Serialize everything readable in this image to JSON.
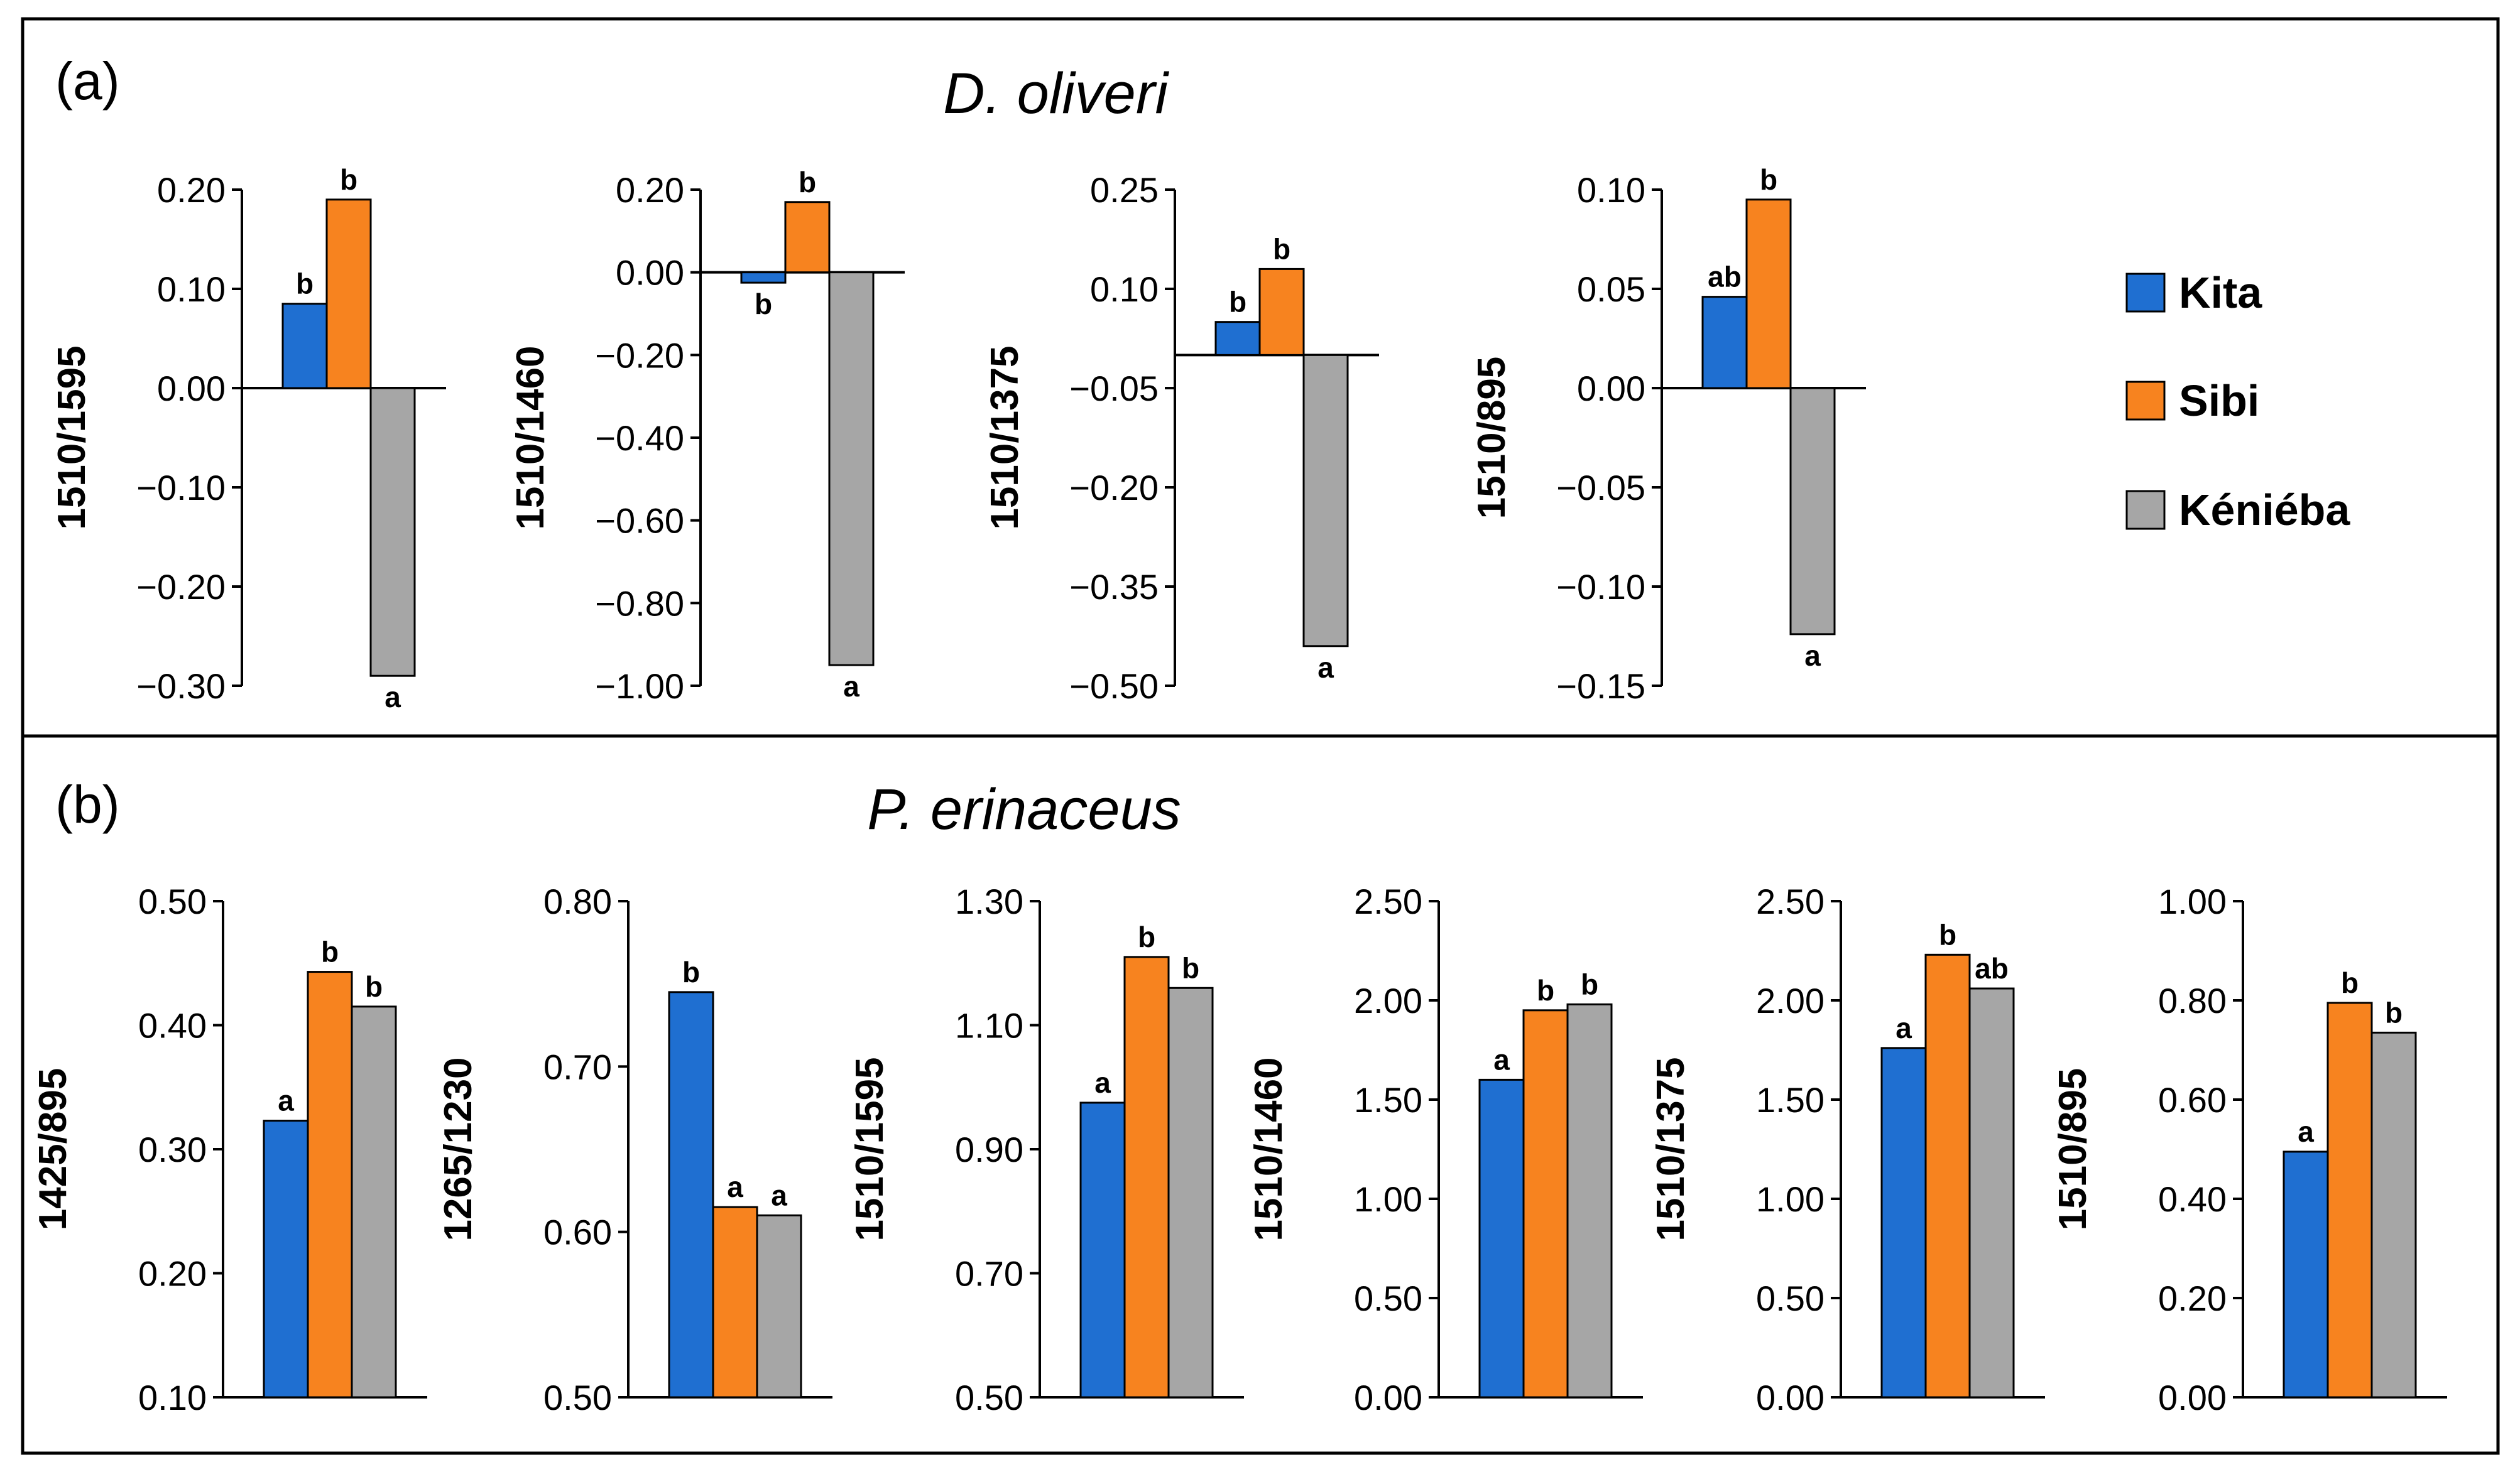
{
  "colors": {
    "Kita": "#1f6fd1",
    "Sibi": "#f7831f",
    "Keniéba": "#a6a6a6"
  },
  "legend": [
    {
      "key": "Kita",
      "label": "Kita"
    },
    {
      "key": "Sibi",
      "label": "Sibi"
    },
    {
      "key": "Keniéba",
      "label": "Kéniéba"
    }
  ],
  "panels": [
    {
      "label": "(a)",
      "title": "D. oliveri"
    },
    {
      "label": "(b)",
      "title": "P. erinaceus"
    }
  ],
  "chart_data": [
    {
      "panel": "(a)",
      "type": "bar",
      "ylabel": "1510/1595",
      "ylim": [
        -0.3,
        0.2
      ],
      "ticks": [
        0.2,
        0.1,
        0.0,
        -0.1,
        -0.2,
        -0.3
      ],
      "tick_labels": [
        "0.20",
        "0.10",
        "0.00",
        "−0.10",
        "−0.20",
        "−0.30"
      ],
      "categories": [
        "Kita",
        "Sibi",
        "Kéniéba"
      ],
      "values": [
        0.085,
        0.19,
        -0.29
      ],
      "letters": [
        "b",
        "b",
        "a"
      ]
    },
    {
      "panel": "(a)",
      "type": "bar",
      "ylabel": "1510/1460",
      "ylim": [
        -1.0,
        0.2
      ],
      "ticks": [
        0.2,
        0.0,
        -0.2,
        -0.4,
        -0.6,
        -0.8,
        -1.0
      ],
      "tick_labels": [
        "0.20",
        "0.00",
        "−0.20",
        "−0.40",
        "−0.60",
        "−0.80",
        "−1.00"
      ],
      "categories": [
        "Kita",
        "Sibi",
        "Kéniéba"
      ],
      "values": [
        -0.025,
        0.17,
        -0.95
      ],
      "letters": [
        "b",
        "b",
        "a"
      ]
    },
    {
      "panel": "(a)",
      "type": "bar",
      "ylabel": "1510/1375",
      "ylim": [
        -0.5,
        0.25
      ],
      "ticks": [
        0.25,
        0.1,
        -0.05,
        -0.2,
        -0.35,
        -0.5
      ],
      "tick_labels": [
        "0.25",
        "0.10",
        "−0.05",
        "−0.20",
        "−0.35",
        "−0.50"
      ],
      "categories": [
        "Kita",
        "Sibi",
        "Kéniéba"
      ],
      "values": [
        0.05,
        0.13,
        -0.44
      ],
      "letters": [
        "b",
        "b",
        "a"
      ]
    },
    {
      "panel": "(a)",
      "type": "bar",
      "ylabel": "1510/895",
      "ylim": [
        -0.15,
        0.1
      ],
      "ticks": [
        0.1,
        0.05,
        0.0,
        -0.05,
        -0.1,
        -0.15
      ],
      "tick_labels": [
        "0.10",
        "0.05",
        "0.00",
        "−0.05",
        "−0.10",
        "−0.15"
      ],
      "categories": [
        "Kita",
        "Sibi",
        "Kéniéba"
      ],
      "values": [
        0.046,
        0.095,
        -0.124
      ],
      "letters": [
        "ab",
        "b",
        "a"
      ]
    },
    {
      "panel": "(b)",
      "type": "bar",
      "ylabel": "1425/895",
      "ylim": [
        0.1,
        0.5
      ],
      "ticks": [
        0.5,
        0.4,
        0.3,
        0.2,
        0.1
      ],
      "tick_labels": [
        "0.50",
        "0.40",
        "0.30",
        "0.20",
        "0.10"
      ],
      "categories": [
        "Kita",
        "Sibi",
        "Kéniéba"
      ],
      "values": [
        0.323,
        0.443,
        0.415
      ],
      "letters": [
        "a",
        "b",
        "b"
      ]
    },
    {
      "panel": "(b)",
      "type": "bar",
      "ylabel": "1265/1230",
      "ylim": [
        0.5,
        0.8
      ],
      "ticks": [
        0.8,
        0.7,
        0.6,
        0.5
      ],
      "tick_labels": [
        "0.80",
        "0.70",
        "0.60",
        "0.50"
      ],
      "categories": [
        "Kita",
        "Sibi",
        "Kéniéba"
      ],
      "values": [
        0.745,
        0.615,
        0.61
      ],
      "letters": [
        "b",
        "a",
        "a"
      ]
    },
    {
      "panel": "(b)",
      "type": "bar",
      "ylabel": "1510/1595",
      "ylim": [
        0.5,
        1.3
      ],
      "ticks": [
        1.3,
        1.1,
        0.9,
        0.7,
        0.5
      ],
      "tick_labels": [
        "1.30",
        "1.10",
        "0.90",
        "0.70",
        "0.50"
      ],
      "categories": [
        "Kita",
        "Sibi",
        "Kéniéba"
      ],
      "values": [
        0.975,
        1.21,
        1.16
      ],
      "letters": [
        "a",
        "b",
        "b"
      ]
    },
    {
      "panel": "(b)",
      "type": "bar",
      "ylabel": "1510/1460",
      "ylim": [
        0.0,
        2.5
      ],
      "ticks": [
        2.5,
        2.0,
        1.5,
        1.0,
        0.5,
        0.0
      ],
      "tick_labels": [
        "2.50",
        "2.00",
        "1.50",
        "1.00",
        "0.50",
        "0.00"
      ],
      "categories": [
        "Kita",
        "Sibi",
        "Kéniéba"
      ],
      "values": [
        1.6,
        1.95,
        1.98
      ],
      "letters": [
        "a",
        "b",
        "b"
      ]
    },
    {
      "panel": "(b)",
      "type": "bar",
      "ylabel": "1510/1375",
      "ylim": [
        0.0,
        2.5
      ],
      "ticks": [
        2.5,
        2.0,
        1.5,
        1.0,
        0.5,
        0.0
      ],
      "tick_labels": [
        "2.50",
        "2.00",
        "1.50",
        "1.00",
        "0.50",
        "0.00"
      ],
      "categories": [
        "Kita",
        "Sibi",
        "Kéniéba"
      ],
      "values": [
        1.76,
        2.23,
        2.06
      ],
      "letters": [
        "a",
        "b",
        "ab"
      ]
    },
    {
      "panel": "(b)",
      "type": "bar",
      "ylabel": "1510/895",
      "ylim": [
        0.0,
        1.0
      ],
      "ticks": [
        1.0,
        0.8,
        0.6,
        0.4,
        0.2,
        0.0
      ],
      "tick_labels": [
        "1.00",
        "0.80",
        "0.60",
        "0.40",
        "0.20",
        "0.00"
      ],
      "categories": [
        "Kita",
        "Sibi",
        "Kéniéba"
      ],
      "values": [
        0.495,
        0.795,
        0.735
      ],
      "letters": [
        "a",
        "b",
        "b"
      ]
    }
  ]
}
